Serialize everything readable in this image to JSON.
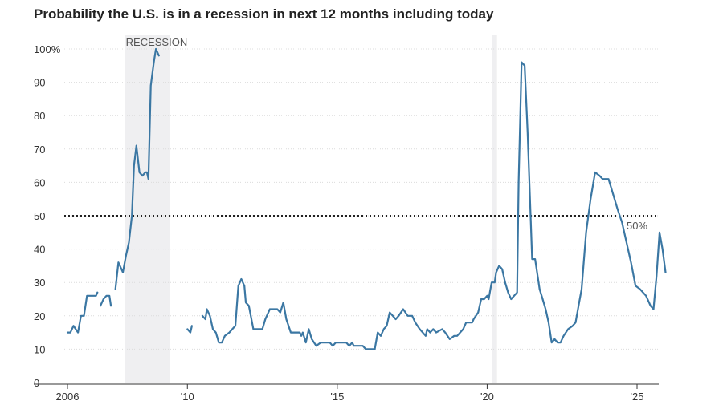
{
  "chart_data": {
    "type": "line",
    "title": "Probability the U.S. is in a recession in next 12 months including today",
    "xlabel": "",
    "ylabel": "",
    "y_ticks": [
      0,
      10,
      20,
      30,
      40,
      50,
      60,
      70,
      80,
      90,
      100
    ],
    "y_tick_labels": [
      "0",
      "10",
      "20",
      "30",
      "40",
      "50",
      "60",
      "70",
      "80",
      "90",
      "100%"
    ],
    "ylim": [
      0,
      100
    ],
    "xlim": [
      2006.0,
      2025.75
    ],
    "x_ticks": [
      2006,
      2010,
      2015,
      2020,
      2025
    ],
    "x_tick_labels": [
      "2006",
      "'10",
      "'15",
      "'20",
      "'25"
    ],
    "grid": true,
    "threshold": {
      "value": 50,
      "label": "50%",
      "style": "dotted"
    },
    "recessions": [
      {
        "start": 2007.92,
        "end": 2009.42,
        "label": "RECESSION"
      },
      {
        "start": 2020.17,
        "end": 2020.33,
        "label": ""
      }
    ],
    "series": [
      {
        "color": "#3b77a3",
        "segments": [
          [
            [
              2006.0,
              15
            ],
            [
              2006.1,
              15
            ],
            [
              2006.2,
              17
            ],
            [
              2006.35,
              15
            ],
            [
              2006.45,
              20
            ],
            [
              2006.55,
              20
            ],
            [
              2006.65,
              26
            ],
            [
              2006.85,
              26
            ],
            [
              2006.95,
              26
            ],
            [
              2007.0,
              27
            ]
          ],
          [
            [
              2007.1,
              23
            ],
            [
              2007.2,
              25
            ],
            [
              2007.3,
              26
            ],
            [
              2007.4,
              26
            ],
            [
              2007.45,
              23
            ]
          ],
          [
            [
              2007.6,
              28
            ],
            [
              2007.7,
              36
            ],
            [
              2007.8,
              34
            ],
            [
              2007.85,
              33
            ],
            [
              2007.95,
              38
            ],
            [
              2008.05,
              42
            ],
            [
              2008.15,
              50
            ],
            [
              2008.22,
              65
            ],
            [
              2008.3,
              71
            ],
            [
              2008.4,
              63
            ],
            [
              2008.5,
              62
            ],
            [
              2008.6,
              63
            ],
            [
              2008.65,
              63
            ],
            [
              2008.7,
              61
            ],
            [
              2008.78,
              89
            ],
            [
              2008.88,
              96
            ],
            [
              2008.95,
              100
            ],
            [
              2009.05,
              98
            ]
          ],
          [
            [
              2010.0,
              16
            ],
            [
              2010.1,
              15
            ],
            [
              2010.15,
              17
            ]
          ],
          [
            [
              2010.5,
              20
            ],
            [
              2010.6,
              19
            ],
            [
              2010.65,
              22
            ],
            [
              2010.75,
              20
            ],
            [
              2010.85,
              16
            ],
            [
              2010.95,
              15
            ],
            [
              2011.05,
              12
            ],
            [
              2011.15,
              12
            ],
            [
              2011.25,
              14
            ],
            [
              2011.4,
              15
            ],
            [
              2011.5,
              16
            ],
            [
              2011.6,
              17
            ],
            [
              2011.7,
              29
            ],
            [
              2011.8,
              31
            ],
            [
              2011.9,
              29
            ],
            [
              2011.95,
              24
            ],
            [
              2012.05,
              23
            ],
            [
              2012.2,
              16
            ],
            [
              2012.35,
              16
            ],
            [
              2012.5,
              16
            ],
            [
              2012.6,
              19
            ],
            [
              2012.75,
              22
            ],
            [
              2012.9,
              22
            ],
            [
              2013.0,
              22
            ],
            [
              2013.1,
              21
            ],
            [
              2013.2,
              24
            ],
            [
              2013.3,
              19
            ],
            [
              2013.45,
              15
            ],
            [
              2013.6,
              15
            ],
            [
              2013.75,
              15
            ],
            [
              2013.8,
              14
            ],
            [
              2013.85,
              15
            ],
            [
              2013.95,
              12
            ],
            [
              2014.05,
              16
            ],
            [
              2014.15,
              13
            ],
            [
              2014.3,
              11
            ],
            [
              2014.45,
              12
            ],
            [
              2014.6,
              12
            ],
            [
              2014.75,
              12
            ],
            [
              2014.85,
              11
            ],
            [
              2014.95,
              12
            ],
            [
              2015.1,
              12
            ],
            [
              2015.3,
              12
            ],
            [
              2015.4,
              11
            ],
            [
              2015.5,
              12
            ],
            [
              2015.55,
              11
            ],
            [
              2015.7,
              11
            ],
            [
              2015.85,
              11
            ],
            [
              2015.95,
              10
            ],
            [
              2016.1,
              10
            ],
            [
              2016.25,
              10
            ],
            [
              2016.35,
              15
            ],
            [
              2016.45,
              14
            ],
            [
              2016.55,
              16
            ],
            [
              2016.65,
              17
            ],
            [
              2016.75,
              21
            ],
            [
              2016.85,
              20
            ],
            [
              2016.95,
              19
            ],
            [
              2017.05,
              20
            ],
            [
              2017.2,
              22
            ],
            [
              2017.35,
              20
            ],
            [
              2017.5,
              20
            ],
            [
              2017.6,
              18
            ],
            [
              2017.75,
              16
            ],
            [
              2017.95,
              14
            ],
            [
              2018.0,
              16
            ],
            [
              2018.1,
              15
            ],
            [
              2018.2,
              16
            ],
            [
              2018.3,
              15
            ],
            [
              2018.5,
              16
            ],
            [
              2018.6,
              15
            ],
            [
              2018.75,
              13
            ],
            [
              2018.9,
              14
            ],
            [
              2019.0,
              14
            ],
            [
              2019.1,
              15
            ],
            [
              2019.2,
              16
            ],
            [
              2019.3,
              18
            ],
            [
              2019.5,
              18
            ],
            [
              2019.55,
              19
            ],
            [
              2019.7,
              21
            ],
            [
              2019.8,
              25
            ],
            [
              2019.9,
              25
            ],
            [
              2020.0,
              26
            ],
            [
              2020.05,
              25
            ],
            [
              2020.15,
              30
            ],
            [
              2020.25,
              30
            ],
            [
              2020.3,
              33
            ],
            [
              2020.4,
              35
            ],
            [
              2020.5,
              34
            ],
            [
              2020.6,
              30
            ],
            [
              2020.7,
              27
            ],
            [
              2020.8,
              25
            ],
            [
              2020.9,
              26
            ],
            [
              2021.0,
              27
            ],
            [
              2021.05,
              60
            ],
            [
              2021.15,
              96
            ],
            [
              2021.25,
              95
            ],
            [
              2021.35,
              75
            ],
            [
              2021.45,
              50
            ],
            [
              2021.5,
              37
            ],
            [
              2021.6,
              37
            ],
            [
              2021.75,
              28
            ],
            [
              2021.85,
              25
            ],
            [
              2021.95,
              22
            ],
            [
              2022.05,
              18
            ],
            [
              2022.15,
              12
            ],
            [
              2022.25,
              13
            ],
            [
              2022.35,
              12
            ],
            [
              2022.45,
              12
            ],
            [
              2022.55,
              14
            ],
            [
              2022.7,
              16
            ],
            [
              2022.85,
              17
            ],
            [
              2022.95,
              18
            ],
            [
              2023.05,
              23
            ],
            [
              2023.15,
              28
            ],
            [
              2023.3,
              45
            ],
            [
              2023.45,
              55
            ],
            [
              2023.6,
              63
            ],
            [
              2023.75,
              62
            ],
            [
              2023.85,
              61
            ],
            [
              2023.95,
              61
            ],
            [
              2024.05,
              61
            ],
            [
              2024.15,
              58
            ],
            [
              2024.35,
              52
            ],
            [
              2024.5,
              48
            ],
            [
              2024.65,
              42
            ],
            [
              2024.8,
              36
            ],
            [
              2024.95,
              29
            ],
            [
              2025.1,
              28
            ],
            [
              2025.2,
              27
            ],
            [
              2025.3,
              26
            ],
            [
              2025.45,
              23
            ],
            [
              2025.55,
              22
            ],
            [
              2025.65,
              32
            ],
            [
              2025.75,
              45
            ],
            [
              2025.85,
              40
            ],
            [
              2025.95,
              33
            ]
          ]
        ]
      }
    ]
  }
}
